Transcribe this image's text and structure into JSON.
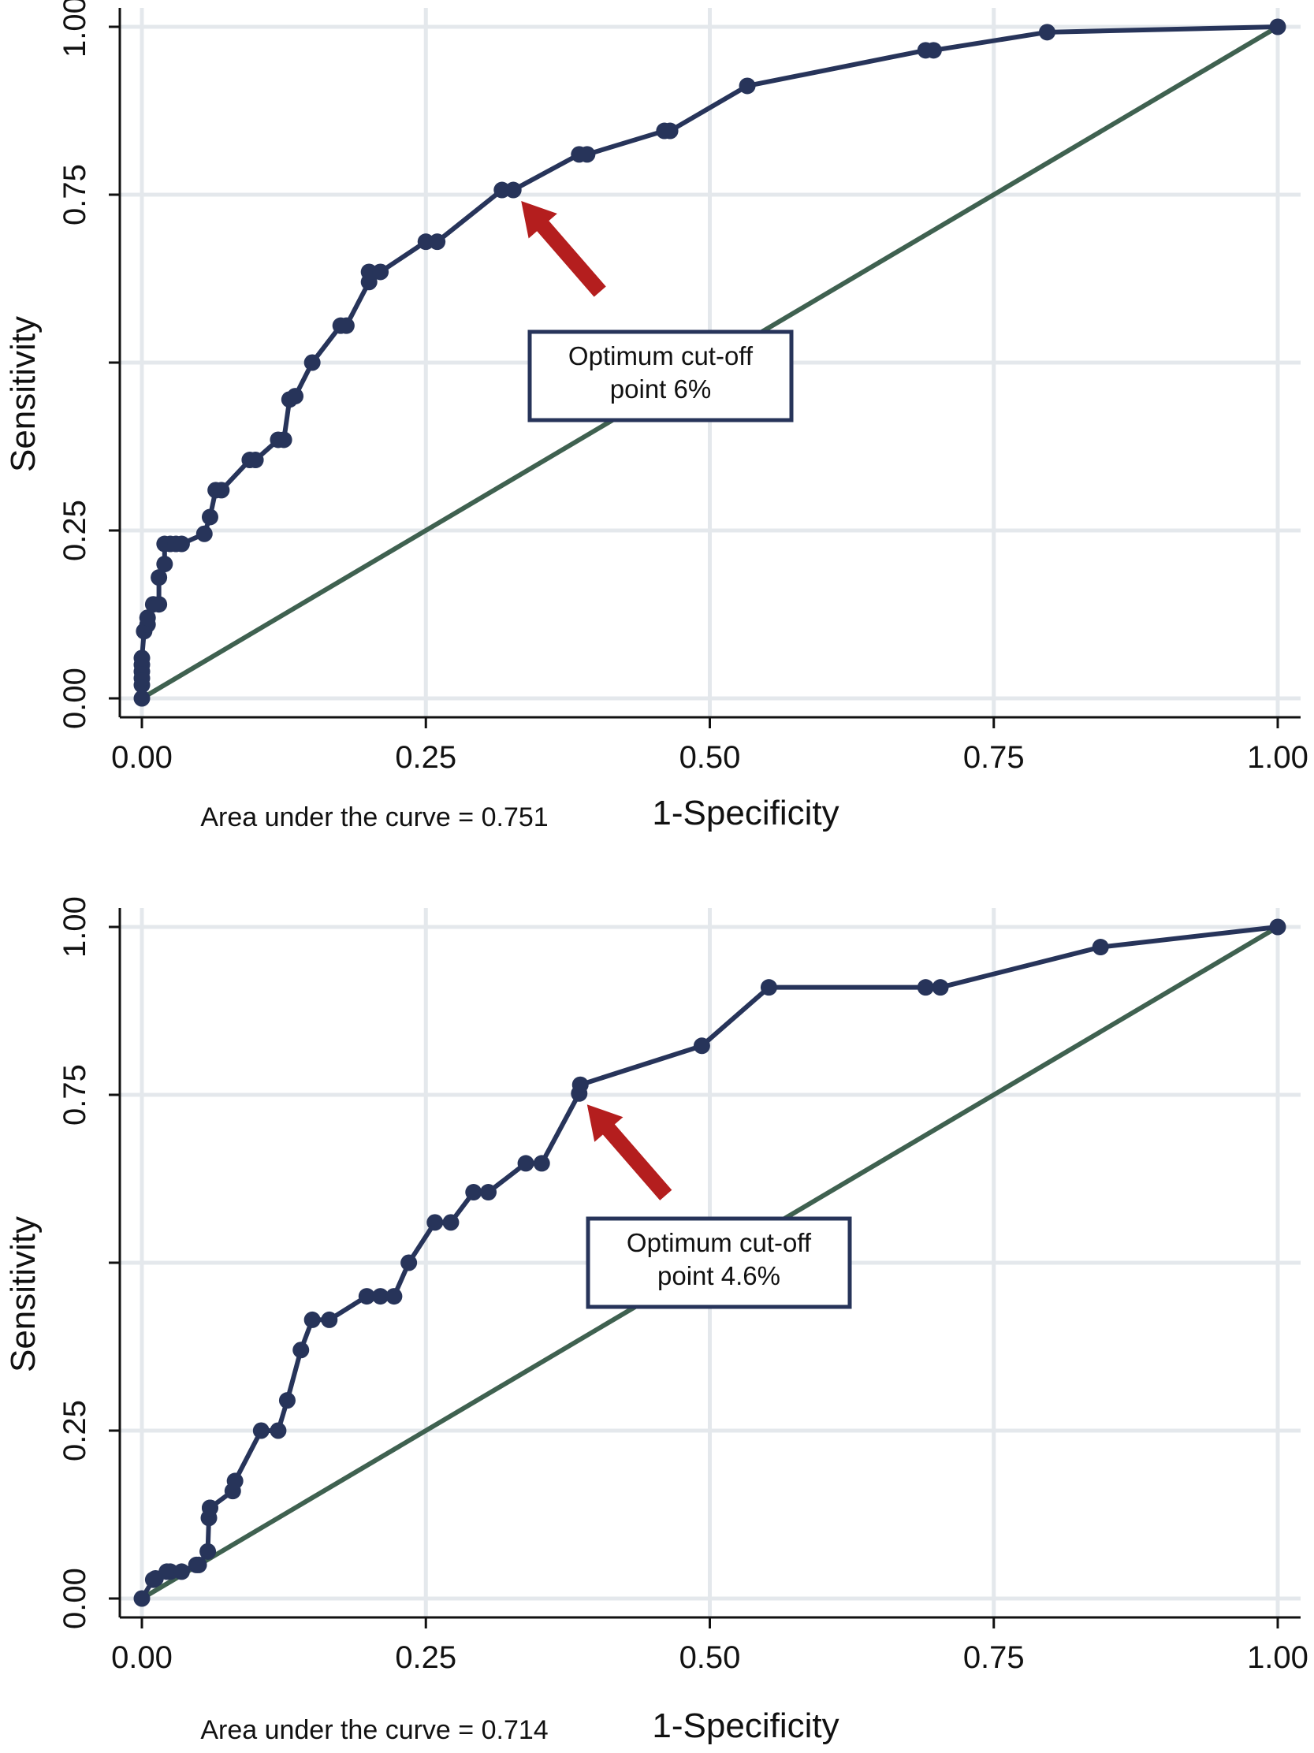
{
  "colors": {
    "curve": "#27345a",
    "reference": "#3f6150",
    "grid": "#e4e8ec",
    "arrow": "#b41e1e",
    "callout_border": "#27345a"
  },
  "chart_data": [
    {
      "type": "line",
      "xlabel": "1-Specificity",
      "ylabel": "Sensitivity",
      "xlim": [
        0,
        1
      ],
      "ylim": [
        0,
        1
      ],
      "x_ticks": [
        "0.00",
        "0.25",
        "0.50",
        "0.75",
        "1.00"
      ],
      "y_ticks": [
        "0.00",
        "0.25",
        "0.75",
        "1.00"
      ],
      "grid": true,
      "auc_text": "Area under the curve = 0.751",
      "annotation": {
        "lines": [
          "Optimum cut-off",
          "point 6%"
        ],
        "points_to": [
          0.327,
          0.757
        ]
      },
      "series": [
        {
          "x": [
            0,
            0,
            0,
            0,
            0,
            0,
            0.002,
            0.005,
            0.005,
            0.01,
            0.015,
            0.015,
            0.02,
            0.02,
            0.025,
            0.03,
            0.035,
            0.055,
            0.06,
            0.065,
            0.07,
            0.095,
            0.1,
            0.12,
            0.125,
            0.13,
            0.135,
            0.15,
            0.175,
            0.18,
            0.2,
            0.2,
            0.21,
            0.25,
            0.26,
            0.317,
            0.327,
            0.385,
            0.392,
            0.46,
            0.465,
            0.533,
            0.69,
            0.697,
            0.797,
            1.0
          ],
          "y": [
            0,
            0.02,
            0.03,
            0.04,
            0.05,
            0.06,
            0.1,
            0.11,
            0.12,
            0.14,
            0.14,
            0.18,
            0.2,
            0.23,
            0.23,
            0.23,
            0.23,
            0.245,
            0.27,
            0.31,
            0.31,
            0.355,
            0.355,
            0.385,
            0.385,
            0.445,
            0.45,
            0.5,
            0.555,
            0.555,
            0.62,
            0.635,
            0.635,
            0.68,
            0.68,
            0.757,
            0.757,
            0.81,
            0.81,
            0.845,
            0.845,
            0.912,
            0.965,
            0.965,
            0.992,
            1.0
          ]
        },
        {
          "x": [
            0,
            1
          ],
          "y": [
            0,
            1
          ]
        }
      ]
    },
    {
      "type": "line",
      "xlabel": "1-Specificity",
      "ylabel": "Sensitivity",
      "xlim": [
        0,
        1
      ],
      "ylim": [
        0,
        1
      ],
      "x_ticks": [
        "0.00",
        "0.25",
        "0.50",
        "0.75",
        "1.00"
      ],
      "y_ticks": [
        "0.00",
        "0.25",
        "0.75",
        "1.00"
      ],
      "grid": true,
      "auc_text": "Area under the curve = 0.714",
      "annotation": {
        "lines": [
          "Optimum cut-off",
          "point 4.6%"
        ],
        "points_to": [
          0.385,
          0.752
        ]
      },
      "series": [
        {
          "x": [
            0,
            0.01,
            0.012,
            0.022,
            0.025,
            0.035,
            0.048,
            0.05,
            0.058,
            0.059,
            0.06,
            0.06,
            0.08,
            0.082,
            0.105,
            0.12,
            0.128,
            0.14,
            0.15,
            0.165,
            0.198,
            0.21,
            0.222,
            0.235,
            0.258,
            0.272,
            0.292,
            0.305,
            0.338,
            0.352,
            0.385,
            0.386,
            0.493,
            0.552,
            0.69,
            0.703,
            0.844,
            1.0
          ],
          "y": [
            0,
            0.028,
            0.03,
            0.04,
            0.04,
            0.04,
            0.05,
            0.05,
            0.07,
            0.12,
            0.135,
            0.135,
            0.16,
            0.175,
            0.25,
            0.25,
            0.295,
            0.37,
            0.415,
            0.415,
            0.45,
            0.45,
            0.45,
            0.5,
            0.56,
            0.56,
            0.605,
            0.605,
            0.648,
            0.648,
            0.752,
            0.765,
            0.823,
            0.91,
            0.91,
            0.91,
            0.97,
            1.0
          ]
        },
        {
          "x": [
            0,
            1
          ],
          "y": [
            0,
            1
          ]
        }
      ]
    }
  ]
}
